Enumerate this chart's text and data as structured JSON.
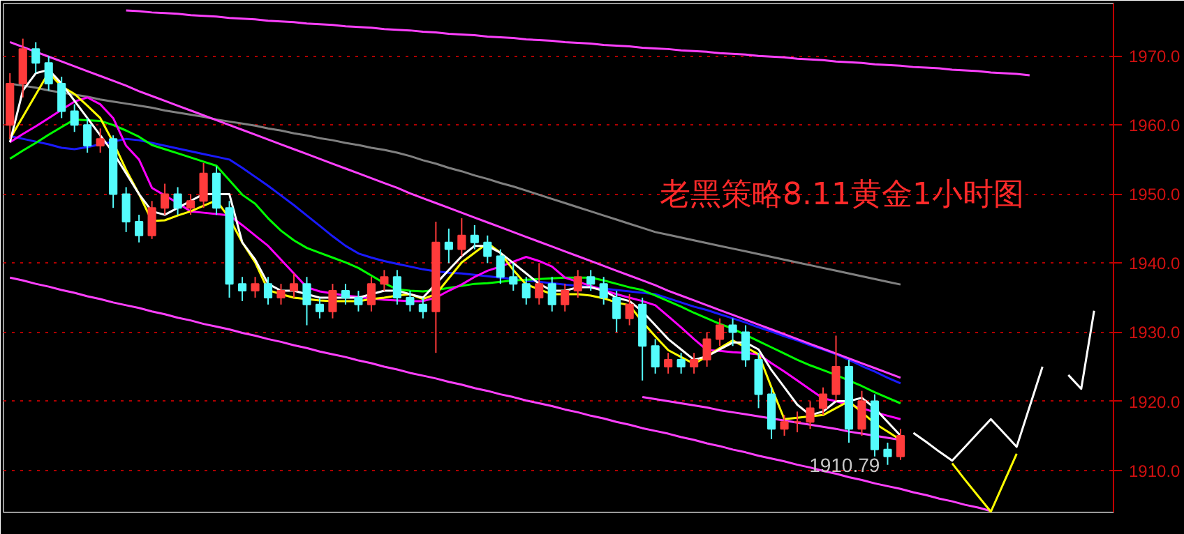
{
  "chart_data": {
    "type": "candlestick",
    "title": "老黑策略8.11黄金1小时图",
    "categories": [
      null,
      null,
      null,
      null,
      null,
      null,
      null,
      null,
      null,
      null,
      null,
      null,
      null,
      null,
      null,
      null,
      null,
      null,
      null,
      null,
      null,
      null,
      null,
      null,
      null,
      null,
      null,
      null,
      null,
      null,
      null,
      null,
      null,
      null,
      null,
      null,
      null,
      null,
      null,
      null,
      null,
      null,
      null,
      null,
      null,
      null,
      null,
      null,
      null,
      null,
      null,
      null,
      null,
      null,
      null,
      null,
      null,
      null,
      null,
      null,
      null,
      null,
      null,
      null,
      null,
      null,
      null,
      null,
      null,
      null,
      null,
      null,
      null,
      null,
      null,
      null,
      null,
      null,
      null,
      null,
      null,
      null,
      null,
      null,
      null,
      null
    ],
    "ohlc": [
      [
        1960,
        1967.5,
        1958,
        1966
      ],
      [
        1966,
        1972.5,
        1964,
        1971
      ],
      [
        1971,
        1972,
        1967.5,
        1969
      ],
      [
        1969,
        1970,
        1965,
        1966
      ],
      [
        1966,
        1967,
        1961,
        1962
      ],
      [
        1962,
        1963,
        1959,
        1960
      ],
      [
        1960,
        1961,
        1956,
        1957
      ],
      [
        1957,
        1959.5,
        1956,
        1958
      ],
      [
        1958,
        1958.5,
        1948,
        1950
      ],
      [
        1950,
        1951,
        1944.5,
        1946
      ],
      [
        1946,
        1947,
        1943,
        1944
      ],
      [
        1944,
        1949,
        1943.5,
        1948
      ],
      [
        1948,
        1951.5,
        1947,
        1950
      ],
      [
        1950,
        1951,
        1947,
        1948
      ],
      [
        1948,
        1950,
        1947,
        1949
      ],
      [
        1949,
        1954.5,
        1948,
        1953
      ],
      [
        1953,
        1954,
        1947,
        1948
      ],
      [
        1948,
        1949,
        1935,
        1937
      ],
      [
        1937,
        1938,
        1934.5,
        1936
      ],
      [
        1936,
        1938,
        1935,
        1937
      ],
      [
        1937,
        1938,
        1934,
        1935
      ],
      [
        1935,
        1937,
        1934,
        1936
      ],
      [
        1936,
        1938.5,
        1935,
        1937
      ],
      [
        1937,
        1938,
        1931,
        1934
      ],
      [
        1934,
        1935,
        1932,
        1933
      ],
      [
        1933,
        1937,
        1932,
        1936
      ],
      [
        1936,
        1937,
        1934,
        1935
      ],
      [
        1935,
        1936,
        1933,
        1934
      ],
      [
        1934,
        1938,
        1933,
        1937
      ],
      [
        1937,
        1939,
        1936,
        1938
      ],
      [
        1938,
        1939,
        1934,
        1935
      ],
      [
        1935,
        1936,
        1933,
        1934
      ],
      [
        1934,
        1935,
        1932,
        1933
      ],
      [
        1933,
        1946,
        1927,
        1943
      ],
      [
        1943,
        1945,
        1940,
        1942
      ],
      [
        1942,
        1946.5,
        1941,
        1944
      ],
      [
        1944,
        1945.5,
        1942,
        1943
      ],
      [
        1943,
        1944,
        1940,
        1941
      ],
      [
        1941,
        1942,
        1937,
        1938
      ],
      [
        1938,
        1940,
        1936,
        1937
      ],
      [
        1937,
        1938,
        1934,
        1935
      ],
      [
        1935,
        1940,
        1934,
        1937
      ],
      [
        1937,
        1938,
        1933,
        1934
      ],
      [
        1934,
        1937,
        1933,
        1936
      ],
      [
        1936,
        1939,
        1935,
        1938
      ],
      [
        1938,
        1939,
        1936,
        1937
      ],
      [
        1937,
        1938,
        1934,
        1935
      ],
      [
        1935,
        1936,
        1930,
        1932
      ],
      [
        1932,
        1935.5,
        1931,
        1934
      ],
      [
        1934,
        1935,
        1923,
        1928
      ],
      [
        1928,
        1929,
        1924,
        1925
      ],
      [
        1925,
        1927,
        1924,
        1926
      ],
      [
        1926,
        1927,
        1924,
        1925
      ],
      [
        1925,
        1927,
        1924,
        1926
      ],
      [
        1926,
        1930,
        1925,
        1929
      ],
      [
        1929,
        1932,
        1928,
        1931
      ],
      [
        1931,
        1932,
        1928,
        1930
      ],
      [
        1930,
        1931,
        1925,
        1926
      ],
      [
        1926,
        1927,
        1919,
        1921
      ],
      [
        1921,
        1922,
        1914.5,
        1916
      ],
      [
        1916,
        1918,
        1915,
        1917
      ],
      [
        1917,
        1918.5,
        1915.5,
        1917
      ],
      [
        1917,
        1920,
        1916,
        1919
      ],
      [
        1919,
        1922,
        1918,
        1921
      ],
      [
        1921,
        1929.5,
        1920,
        1925
      ],
      [
        1925,
        1926,
        1914,
        1916
      ],
      [
        1916,
        1921.5,
        1915,
        1920
      ],
      [
        1920,
        1921,
        1912,
        1913
      ],
      [
        1913,
        1914,
        1910.79,
        1912
      ],
      [
        1912,
        1916,
        1911.5,
        1915
      ],
      null,
      null,
      null,
      null,
      null,
      null,
      null,
      null,
      null,
      null,
      null,
      null,
      null,
      null,
      null,
      null
    ],
    "colors": [
      "#ff3b3b",
      "#ff3b3b",
      "#54fcfc",
      "#54fcfc",
      "#54fcfc",
      "#54fcfc",
      "#54fcfc",
      "#ff3b3b",
      "#54fcfc",
      "#54fcfc",
      "#54fcfc",
      "#ff3b3b",
      "#ff3b3b",
      "#54fcfc",
      "#ff3b3b",
      "#ff3b3b",
      "#54fcfc",
      "#54fcfc",
      "#54fcfc",
      "#ff3b3b",
      "#54fcfc",
      "#ff3b3b",
      "#ff3b3b",
      "#54fcfc",
      "#54fcfc",
      "#ff3b3b",
      "#54fcfc",
      "#54fcfc",
      "#ff3b3b",
      "#ff3b3b",
      "#54fcfc",
      "#54fcfc",
      "#54fcfc",
      "#ff3b3b",
      "#54fcfc",
      "#ff3b3b",
      "#54fcfc",
      "#54fcfc",
      "#54fcfc",
      "#54fcfc",
      "#54fcfc",
      "#ff3b3b",
      "#54fcfc",
      "#ff3b3b",
      "#ff3b3b",
      "#54fcfc",
      "#54fcfc",
      "#54fcfc",
      "#ff3b3b",
      "#54fcfc",
      "#54fcfc",
      "#ff3b3b",
      "#54fcfc",
      "#ff3b3b",
      "#ff3b3b",
      "#ff3b3b",
      "#54fcfc",
      "#54fcfc",
      "#54fcfc",
      "#54fcfc",
      "#ff3b3b",
      "#ff3b3b",
      "#ff3b3b",
      "#ff3b3b",
      "#ff3b3b",
      "#54fcfc",
      "#ff3b3b",
      "#54fcfc",
      "#54fcfc",
      "#ff3b3b",
      null,
      null,
      null,
      null,
      null,
      null,
      null,
      null,
      null,
      null,
      null,
      null,
      null,
      null,
      null,
      null
    ],
    "series": [
      {
        "type": "line",
        "color": "#808080",
        "values": [
          1966.0,
          1965.7,
          1965.4,
          1965.0,
          1964.7,
          1964.4,
          1964.1,
          1963.7,
          1963.4,
          1963.1,
          1962.8,
          1962.5,
          1962.1,
          1961.8,
          1961.5,
          1961.2,
          1960.8,
          1960.5,
          1960.2,
          1959.9,
          1959.5,
          1959.2,
          1958.8,
          1958.5,
          1958.1,
          1957.8,
          1957.4,
          1957.1,
          1956.7,
          1956.4,
          1956.0,
          1955.5,
          1954.9,
          1954.4,
          1953.8,
          1953.3,
          1952.7,
          1952.2,
          1951.6,
          1951.1,
          1950.5,
          1949.9,
          1949.3,
          1948.7,
          1948.1,
          1947.5,
          1946.9,
          1946.3,
          1945.7,
          1945.1,
          1944.5,
          1944.1,
          1943.7,
          1943.3,
          1942.9,
          1942.5,
          1942.1,
          1941.7,
          1941.3,
          1940.9,
          1940.5,
          1940.1,
          1939.7,
          1939.3,
          1938.9,
          1938.5,
          1938.1,
          1937.7,
          1937.3,
          1936.9,
          null,
          null,
          null,
          null,
          null,
          null,
          null,
          null,
          null,
          null,
          null,
          null,
          null,
          null,
          null,
          null
        ]
      },
      {
        "type": "line",
        "color": "#1a1aff",
        "values": [
          1958.4,
          1958.0,
          1957.6,
          1957.2,
          1956.7,
          1956.5,
          1956.8,
          1957.2,
          1957.6,
          1958.0,
          1957.8,
          1957.4,
          1957.0,
          1956.6,
          1956.2,
          1955.8,
          1955.4,
          1955.0,
          1953.8,
          1952.5,
          1951.2,
          1949.8,
          1948.4,
          1946.9,
          1945.4,
          1943.9,
          1942.5,
          1941.4,
          1940.8,
          1940.3,
          1939.9,
          1939.5,
          1939.1,
          1938.8,
          1938.6,
          1938.5,
          1938.3,
          1938.1,
          1937.9,
          1937.7,
          1937.5,
          1937.3,
          1937.1,
          1936.9,
          1936.7,
          1936.5,
          1936.3,
          1936.1,
          1935.9,
          1935.7,
          1935.5,
          1934.9,
          1934.3,
          1933.7,
          1933.2,
          1932.6,
          1932.0,
          1931.4,
          1930.7,
          1930.1,
          1929.4,
          1928.8,
          1928.1,
          1927.5,
          1926.8,
          1926.0,
          1925.1,
          1924.3,
          1923.4,
          1922.6,
          null,
          null,
          null,
          null,
          null,
          null,
          null,
          null,
          null,
          null,
          null,
          null,
          null,
          null,
          null,
          null
        ]
      },
      {
        "type": "line",
        "color": "#00ff00",
        "values": [
          1955.1,
          1956.3,
          1957.4,
          1958.6,
          1959.7,
          1960.8,
          1960.7,
          1960.6,
          1960.0,
          1959.2,
          1958.3,
          1957.1,
          1956.5,
          1955.9,
          1955.3,
          1954.7,
          1954.1,
          1952.0,
          1949.9,
          1948.6,
          1946.5,
          1944.7,
          1943.3,
          1942.2,
          1941.5,
          1940.8,
          1940.1,
          1939.3,
          1938.2,
          1937.1,
          1936.2,
          1936.0,
          1935.9,
          1936.1,
          1936.4,
          1936.7,
          1937.0,
          1937.1,
          1937.3,
          1937.5,
          1937.6,
          1937.7,
          1937.8,
          1937.9,
          1937.9,
          1937.9,
          1937.5,
          1937.0,
          1936.5,
          1936.1,
          1935.3,
          1934.5,
          1933.7,
          1932.8,
          1932.0,
          1931.2,
          1930.5,
          1929.6,
          1928.7,
          1927.8,
          1926.9,
          1926.0,
          1925.2,
          1924.5,
          1923.8,
          1923.0,
          1922.2,
          1921.3,
          1920.5,
          1919.7,
          null,
          null,
          null,
          null,
          null,
          null,
          null,
          null,
          null,
          null,
          null,
          null,
          null,
          null,
          null,
          null
        ]
      },
      {
        "type": "line",
        "color": "#ff00ff",
        "values": [
          1957.5,
          1958.7,
          1959.8,
          1961.0,
          1962.2,
          1963.4,
          1964.0,
          1963.0,
          1961.0,
          1957.0,
          1955.0,
          1950.9,
          1949.8,
          1948.7,
          1947.5,
          1947.3,
          1947.1,
          1946.9,
          1945.5,
          1944.0,
          1942.5,
          1940.5,
          1938.5,
          1936.5,
          1935.9,
          1935.6,
          1935.3,
          1935.1,
          1934.9,
          1934.7,
          1934.6,
          1934.5,
          1934.5,
          1935.0,
          1936.0,
          1936.9,
          1938.0,
          1938.9,
          1939.5,
          1940.2,
          1940.9,
          1940.3,
          1939.5,
          1937.9,
          1937.3,
          1936.7,
          1936.1,
          1935.5,
          1935.0,
          1934.5,
          1933.9,
          1932.3,
          1930.7,
          1929.0,
          1927.4,
          1927.3,
          1927.1,
          1927.0,
          1926.8,
          1925.5,
          1924.3,
          1923.0,
          1921.7,
          1920.4,
          1920.0,
          1919.5,
          1919.0,
          1918.4,
          1917.9,
          1917.4,
          null,
          null,
          null,
          null,
          null,
          null,
          null,
          null,
          null,
          null,
          null,
          null,
          null,
          null,
          null,
          null
        ]
      },
      {
        "type": "line",
        "color": "#ffff00",
        "values": [
          1958.0,
          1961.2,
          1964.4,
          1967.6,
          1965.6,
          1964.5,
          1962.8,
          1961.0,
          1957.5,
          1953.5,
          1950.0,
          1946.1,
          1946.2,
          1946.9,
          1947.5,
          1948.3,
          1949.1,
          1946.5,
          1943.0,
          1940.1,
          1936.1,
          1935.5,
          1935.0,
          1934.8,
          1934.6,
          1934.5,
          1934.5,
          1934.5,
          1934.8,
          1935.0,
          1935.3,
          1935.5,
          1934.8,
          1935.5,
          1937.8,
          1940.1,
          1941.5,
          1942.9,
          1941.5,
          1939.0,
          1936.9,
          1936.2,
          1935.5,
          1935.5,
          1935.5,
          1935.3,
          1934.9,
          1934.3,
          1933.9,
          1931.5,
          1929.4,
          1927.4,
          1926.4,
          1925.4,
          1926.5,
          1927.7,
          1928.8,
          1927.8,
          1926.8,
          1922.0,
          1917.4,
          1917.6,
          1917.8,
          1918.0,
          1919.0,
          1920.0,
          1918.4,
          1916.8,
          1915.6,
          1914.4,
          null,
          null,
          null,
          null,
          null,
          null,
          null,
          null,
          null,
          null,
          null,
          null,
          null,
          null,
          null,
          null
        ]
      },
      {
        "type": "line",
        "color": "#ffffff",
        "values": [
          1957.5,
          1965.0,
          1967.5,
          1968.0,
          1966.0,
          1963.5,
          1961.0,
          1958.5,
          1956.0,
          1953.0,
          1950.0,
          1947.5,
          1947.0,
          1948.0,
          1949.0,
          1950.0,
          1950.0,
          1950.0,
          1943.0,
          1940.5,
          1937.0,
          1936.0,
          1936.0,
          1935.5,
          1935.0,
          1935.0,
          1935.0,
          1935.0,
          1935.5,
          1936.0,
          1936.0,
          1935.5,
          1935.0,
          1937.0,
          1939.0,
          1941.0,
          1942.5,
          1942.5,
          1941.5,
          1940.0,
          1938.5,
          1937.0,
          1936.0,
          1936.0,
          1936.5,
          1936.5,
          1936.0,
          1935.0,
          1934.5,
          1933.0,
          1931.0,
          1929.0,
          1927.5,
          1926.0,
          1926.5,
          1927.5,
          1928.5,
          1928.5,
          1927.5,
          1924.5,
          1922.0,
          1919.5,
          1918.0,
          1918.5,
          1920.0,
          1920.0,
          1920.5,
          1919.0,
          1917.0,
          1915.0,
          null,
          null,
          null,
          null,
          null,
          null,
          null,
          null,
          null,
          null,
          null,
          null,
          null,
          null,
          null,
          null
        ]
      },
      {
        "type": "line",
        "color": "#ff40ff",
        "values": [
          1972.0,
          1971.3,
          1970.6,
          1969.9,
          1969.2,
          1968.5,
          1967.8,
          1967.1,
          1966.4,
          1965.7,
          1964.9,
          1964.2,
          1963.5,
          1962.8,
          1962.1,
          1961.4,
          1960.7,
          1960.0,
          1959.3,
          1958.6,
          1957.9,
          1957.2,
          1956.5,
          1955.8,
          1955.1,
          1954.4,
          1953.7,
          1953.0,
          1952.3,
          1951.6,
          1950.9,
          1950.1,
          1949.4,
          1948.7,
          1948.0,
          1947.3,
          1946.6,
          1945.9,
          1945.2,
          1944.5,
          1943.8,
          1943.1,
          1942.4,
          1941.7,
          1941.0,
          1940.3,
          1939.6,
          1938.9,
          1938.2,
          1937.5,
          1936.8,
          1936.0,
          1935.3,
          1934.6,
          1933.9,
          1933.2,
          1932.5,
          1931.8,
          1931.1,
          1930.4,
          1929.7,
          1929.0,
          1928.3,
          1927.6,
          1926.9,
          1926.2,
          1925.5,
          1924.8,
          1924.1,
          1923.4,
          null,
          null,
          null,
          null,
          null,
          null,
          null,
          null,
          null,
          null,
          null,
          null,
          null,
          null,
          null,
          null
        ]
      },
      {
        "type": "line",
        "color": "#ff40ff",
        "values": [
          1937.9,
          1937.5,
          1937.0,
          1936.6,
          1936.1,
          1935.7,
          1935.2,
          1934.8,
          1934.3,
          1933.9,
          1933.5,
          1933.0,
          1932.6,
          1932.1,
          1931.7,
          1931.2,
          1930.8,
          1930.4,
          1929.9,
          1929.5,
          1929.0,
          1928.6,
          1928.1,
          1927.7,
          1927.2,
          1926.8,
          1926.4,
          1925.9,
          1925.5,
          1925.0,
          1924.6,
          1924.1,
          1923.7,
          1923.3,
          1922.8,
          1922.4,
          1921.9,
          1921.5,
          1921.0,
          1920.6,
          1920.1,
          1919.7,
          1919.3,
          1918.8,
          1918.4,
          1917.9,
          1917.5,
          1917.0,
          1916.6,
          1916.1,
          1915.7,
          1915.3,
          1914.8,
          1914.4,
          1913.9,
          1913.5,
          1913.0,
          1912.6,
          1912.1,
          1911.7,
          1911.3,
          1910.8,
          1910.4,
          1909.9,
          1909.5,
          1909.0,
          1908.6,
          1908.1,
          1907.7,
          1907.3,
          1906.8,
          1906.4,
          1905.9,
          1905.5,
          1905.0,
          1904.6,
          1904.1,
          null,
          null,
          null,
          null,
          null,
          null,
          null,
          null,
          null
        ]
      },
      {
        "type": "line",
        "color": "#ff40ff",
        "values": [
          null,
          null,
          null,
          null,
          null,
          null,
          null,
          null,
          null,
          null,
          null,
          null,
          null,
          null,
          null,
          null,
          null,
          null,
          null,
          null,
          null,
          null,
          null,
          null,
          null,
          null,
          null,
          null,
          null,
          null,
          null,
          null,
          null,
          null,
          null,
          null,
          null,
          null,
          null,
          null,
          null,
          null,
          null,
          null,
          null,
          null,
          null,
          null,
          null,
          1920.6,
          1920.3,
          1920.0,
          1919.7,
          1919.4,
          1919.1,
          1918.7,
          1918.4,
          1918.1,
          1917.8,
          1917.5,
          1917.2,
          1916.9,
          1916.6,
          1916.3,
          1916.0,
          1915.6,
          1915.3,
          1915.0,
          1914.7,
          1914.4,
          null,
          null,
          null,
          null,
          null,
          null,
          null,
          null,
          null,
          null,
          null,
          null,
          null,
          null,
          null,
          null
        ]
      },
      {
        "type": "line",
        "color": "#ff40ff",
        "values": [
          null,
          null,
          null,
          null,
          null,
          null,
          null,
          null,
          null,
          1976.6,
          1976.5,
          1976.3,
          1976.2,
          1976.1,
          1975.9,
          1975.8,
          1975.7,
          1975.5,
          1975.4,
          1975.3,
          1975.1,
          1975.0,
          1974.9,
          1974.7,
          1974.6,
          1974.5,
          1974.3,
          1974.2,
          1974.1,
          1973.9,
          1973.8,
          1973.7,
          1973.5,
          1973.4,
          1973.2,
          1973.1,
          1973.0,
          1972.8,
          1972.7,
          1972.6,
          1972.4,
          1972.3,
          1972.2,
          1972.0,
          1971.9,
          1971.8,
          1971.6,
          1971.5,
          1971.4,
          1971.2,
          1971.1,
          1971.0,
          1970.8,
          1970.7,
          1970.6,
          1970.4,
          1970.3,
          1970.2,
          1970.0,
          1969.9,
          1969.8,
          1969.6,
          1969.5,
          1969.4,
          1969.2,
          1969.1,
          1969.0,
          1968.8,
          1968.7,
          1968.6,
          1968.4,
          1968.3,
          1968.2,
          1968.0,
          1967.9,
          1967.8,
          1967.6,
          1967.5,
          1967.4,
          1967.2,
          null,
          null,
          null,
          null,
          null,
          null
        ]
      },
      {
        "type": "line",
        "color": "#ffffff",
        "values": [
          null,
          null,
          null,
          null,
          null,
          null,
          null,
          null,
          null,
          null,
          null,
          null,
          null,
          null,
          null,
          null,
          null,
          null,
          null,
          null,
          null,
          null,
          null,
          null,
          null,
          null,
          null,
          null,
          null,
          null,
          null,
          null,
          null,
          null,
          null,
          null,
          null,
          null,
          null,
          null,
          null,
          null,
          null,
          null,
          null,
          null,
          null,
          null,
          null,
          null,
          null,
          null,
          null,
          null,
          null,
          null,
          null,
          null,
          null,
          null,
          null,
          null,
          null,
          null,
          null,
          null,
          null,
          null,
          null,
          null,
          1915.4,
          1914.1,
          1912.7,
          1911.4,
          1913.4,
          1915.4,
          1917.4,
          1915.4,
          1913.4,
          1919.2,
          1925.0,
          null,
          1923.8,
          1921.8,
          1933.1,
          null
        ]
      },
      {
        "type": "line",
        "color": "#ffff00",
        "values": [
          null,
          null,
          null,
          null,
          null,
          null,
          null,
          null,
          null,
          null,
          null,
          null,
          null,
          null,
          null,
          null,
          null,
          null,
          null,
          null,
          null,
          null,
          null,
          null,
          null,
          null,
          null,
          null,
          null,
          null,
          null,
          null,
          null,
          null,
          null,
          null,
          null,
          null,
          null,
          null,
          null,
          null,
          null,
          null,
          null,
          null,
          null,
          null,
          null,
          null,
          null,
          null,
          null,
          null,
          null,
          null,
          null,
          null,
          null,
          null,
          null,
          null,
          null,
          null,
          null,
          null,
          null,
          null,
          null,
          null,
          null,
          null,
          null,
          1911.0,
          1908.6,
          1906.3,
          1904.0,
          1908.2,
          1912.4,
          null,
          null,
          null,
          null,
          null,
          null,
          null
        ]
      }
    ],
    "annotations": [
      "1910.79"
    ],
    "ylim": [
      1903.9,
      1977.6
    ],
    "yticks": [
      {
        "value": 1910,
        "label": "1910.0"
      },
      {
        "value": 1920,
        "label": "1920.0"
      },
      {
        "value": 1930,
        "label": "1930.0"
      },
      {
        "value": 1940,
        "label": "1940.0"
      },
      {
        "value": 1950,
        "label": "1950.0"
      },
      {
        "value": 1960,
        "label": "1960.0"
      },
      {
        "value": 1970,
        "label": "1970.0"
      }
    ],
    "grid": "y",
    "tick_labels": "y"
  }
}
